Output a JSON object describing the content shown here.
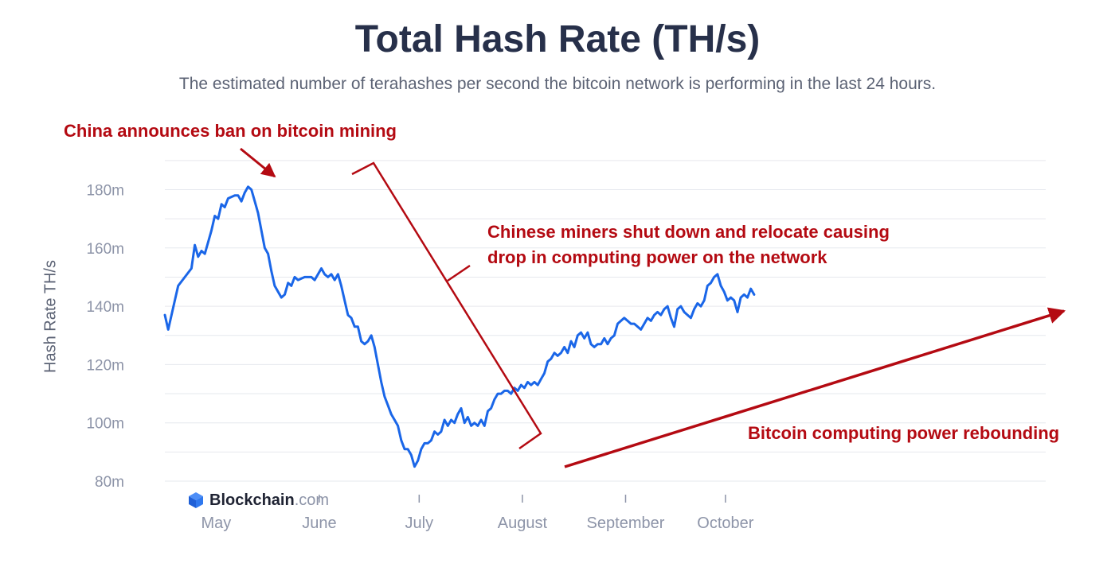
{
  "header": {
    "title": "Total Hash Rate (TH/s)",
    "subtitle": "The estimated number of terahashes per second the bitcoin network is performing in the last 24 hours."
  },
  "brand": {
    "name": "Blockchain",
    "tld": ".com",
    "icon": "blockchain-cube-icon"
  },
  "colors": {
    "line": "#1a66e8",
    "annotation": "#b40a12",
    "grid": "#e6e8ee",
    "text": "#27304a",
    "muted": "#8d94a8"
  },
  "annotations": {
    "ban": "China announces ban on bitcoin mining",
    "miners_line1": "Chinese miners shut down and relocate causing",
    "miners_line2": "drop in computing power on the network",
    "rebound": "Bitcoin computing power rebounding"
  },
  "chart_data": {
    "type": "line",
    "title": "Total Hash Rate (TH/s)",
    "ylabel": "Hash Rate TH/s",
    "xlabel": "",
    "ylim": [
      80,
      190
    ],
    "y_ticks": [
      80,
      100,
      120,
      140,
      160,
      180
    ],
    "y_tick_labels": [
      "80m",
      "100m",
      "120m",
      "140m",
      "160m",
      "180m"
    ],
    "x_ticks": [
      "May",
      "June",
      "July",
      "August",
      "September",
      "October"
    ],
    "grid": true,
    "series": [
      {
        "values": [
          [
            "2021-04-18",
            137
          ],
          [
            "2021-04-19",
            132
          ],
          [
            "2021-04-21",
            142
          ],
          [
            "2021-04-22",
            147
          ],
          [
            "2021-04-24",
            150
          ],
          [
            "2021-04-26",
            153
          ],
          [
            "2021-04-27",
            161
          ],
          [
            "2021-04-28",
            157
          ],
          [
            "2021-04-29",
            159
          ],
          [
            "2021-04-30",
            158
          ],
          [
            "2021-05-02",
            166
          ],
          [
            "2021-05-03",
            171
          ],
          [
            "2021-05-04",
            170
          ],
          [
            "2021-05-05",
            175
          ],
          [
            "2021-05-06",
            174
          ],
          [
            "2021-05-07",
            177
          ],
          [
            "2021-05-09",
            178
          ],
          [
            "2021-05-10",
            178
          ],
          [
            "2021-05-11",
            176
          ],
          [
            "2021-05-12",
            179
          ],
          [
            "2021-05-13",
            181
          ],
          [
            "2021-05-14",
            180
          ],
          [
            "2021-05-15",
            176
          ],
          [
            "2021-05-16",
            172
          ],
          [
            "2021-05-17",
            166
          ],
          [
            "2021-05-18",
            160
          ],
          [
            "2021-05-19",
            158
          ],
          [
            "2021-05-20",
            152
          ],
          [
            "2021-05-21",
            147
          ],
          [
            "2021-05-22",
            145
          ],
          [
            "2021-05-23",
            143
          ],
          [
            "2021-05-24",
            144
          ],
          [
            "2021-05-25",
            148
          ],
          [
            "2021-05-26",
            147
          ],
          [
            "2021-05-27",
            150
          ],
          [
            "2021-05-28",
            149
          ],
          [
            "2021-05-30",
            150
          ],
          [
            "2021-06-01",
            150
          ],
          [
            "2021-06-02",
            149
          ],
          [
            "2021-06-04",
            153
          ],
          [
            "2021-06-05",
            151
          ],
          [
            "2021-06-06",
            150
          ],
          [
            "2021-06-07",
            151
          ],
          [
            "2021-06-08",
            149
          ],
          [
            "2021-06-09",
            151
          ],
          [
            "2021-06-10",
            147
          ],
          [
            "2021-06-11",
            142
          ],
          [
            "2021-06-12",
            137
          ],
          [
            "2021-06-13",
            136
          ],
          [
            "2021-06-14",
            133
          ],
          [
            "2021-06-15",
            133
          ],
          [
            "2021-06-16",
            128
          ],
          [
            "2021-06-17",
            127
          ],
          [
            "2021-06-18",
            128
          ],
          [
            "2021-06-19",
            130
          ],
          [
            "2021-06-20",
            126
          ],
          [
            "2021-06-21",
            120
          ],
          [
            "2021-06-22",
            114
          ],
          [
            "2021-06-23",
            109
          ],
          [
            "2021-06-24",
            106
          ],
          [
            "2021-06-25",
            103
          ],
          [
            "2021-06-26",
            101
          ],
          [
            "2021-06-27",
            99
          ],
          [
            "2021-06-28",
            94
          ],
          [
            "2021-06-29",
            91
          ],
          [
            "2021-06-30",
            91
          ],
          [
            "2021-07-01",
            89
          ],
          [
            "2021-07-02",
            85
          ],
          [
            "2021-07-03",
            87
          ],
          [
            "2021-07-04",
            91
          ],
          [
            "2021-07-05",
            93
          ],
          [
            "2021-07-06",
            93
          ],
          [
            "2021-07-07",
            94
          ],
          [
            "2021-07-08",
            97
          ],
          [
            "2021-07-09",
            96
          ],
          [
            "2021-07-10",
            97
          ],
          [
            "2021-07-11",
            101
          ],
          [
            "2021-07-12",
            99
          ],
          [
            "2021-07-13",
            101
          ],
          [
            "2021-07-14",
            100
          ],
          [
            "2021-07-15",
            103
          ],
          [
            "2021-07-16",
            105
          ],
          [
            "2021-07-17",
            100
          ],
          [
            "2021-07-18",
            102
          ],
          [
            "2021-07-19",
            99
          ],
          [
            "2021-07-20",
            100
          ],
          [
            "2021-07-21",
            99
          ],
          [
            "2021-07-22",
            101
          ],
          [
            "2021-07-23",
            99
          ],
          [
            "2021-07-24",
            104
          ],
          [
            "2021-07-25",
            105
          ],
          [
            "2021-07-26",
            108
          ],
          [
            "2021-07-27",
            110
          ],
          [
            "2021-07-28",
            110
          ],
          [
            "2021-07-29",
            111
          ],
          [
            "2021-07-30",
            111
          ],
          [
            "2021-07-31",
            110
          ],
          [
            "2021-08-01",
            112
          ],
          [
            "2021-08-02",
            111
          ],
          [
            "2021-08-03",
            113
          ],
          [
            "2021-08-04",
            112
          ],
          [
            "2021-08-05",
            114
          ],
          [
            "2021-08-06",
            113
          ],
          [
            "2021-08-07",
            114
          ],
          [
            "2021-08-08",
            113
          ],
          [
            "2021-08-09",
            115
          ],
          [
            "2021-08-10",
            117
          ],
          [
            "2021-08-11",
            121
          ],
          [
            "2021-08-12",
            122
          ],
          [
            "2021-08-13",
            124
          ],
          [
            "2021-08-14",
            123
          ],
          [
            "2021-08-15",
            124
          ],
          [
            "2021-08-16",
            126
          ],
          [
            "2021-08-17",
            124
          ],
          [
            "2021-08-18",
            128
          ],
          [
            "2021-08-19",
            126
          ],
          [
            "2021-08-20",
            130
          ],
          [
            "2021-08-21",
            131
          ],
          [
            "2021-08-22",
            129
          ],
          [
            "2021-08-23",
            131
          ],
          [
            "2021-08-24",
            127
          ],
          [
            "2021-08-25",
            126
          ],
          [
            "2021-08-26",
            127
          ],
          [
            "2021-08-27",
            127
          ],
          [
            "2021-08-28",
            129
          ],
          [
            "2021-08-29",
            127
          ],
          [
            "2021-08-30",
            129
          ],
          [
            "2021-08-31",
            130
          ],
          [
            "2021-09-01",
            134
          ],
          [
            "2021-09-02",
            135
          ],
          [
            "2021-09-03",
            136
          ],
          [
            "2021-09-04",
            135
          ],
          [
            "2021-09-05",
            134
          ],
          [
            "2021-09-06",
            134
          ],
          [
            "2021-09-07",
            133
          ],
          [
            "2021-09-08",
            132
          ],
          [
            "2021-09-09",
            134
          ],
          [
            "2021-09-10",
            136
          ],
          [
            "2021-09-11",
            135
          ],
          [
            "2021-09-12",
            137
          ],
          [
            "2021-09-13",
            138
          ],
          [
            "2021-09-14",
            137
          ],
          [
            "2021-09-15",
            139
          ],
          [
            "2021-09-16",
            140
          ],
          [
            "2021-09-17",
            136
          ],
          [
            "2021-09-18",
            133
          ],
          [
            "2021-09-19",
            139
          ],
          [
            "2021-09-20",
            140
          ],
          [
            "2021-09-21",
            138
          ],
          [
            "2021-09-22",
            137
          ],
          [
            "2021-09-23",
            136
          ],
          [
            "2021-09-24",
            139
          ],
          [
            "2021-09-25",
            141
          ],
          [
            "2021-09-26",
            140
          ],
          [
            "2021-09-27",
            142
          ],
          [
            "2021-09-28",
            147
          ],
          [
            "2021-09-29",
            148
          ],
          [
            "2021-09-30",
            150
          ],
          [
            "2021-10-01",
            151
          ],
          [
            "2021-10-02",
            147
          ],
          [
            "2021-10-03",
            145
          ],
          [
            "2021-10-04",
            142
          ],
          [
            "2021-10-05",
            143
          ],
          [
            "2021-10-06",
            142
          ],
          [
            "2021-10-07",
            138
          ],
          [
            "2021-10-08",
            143
          ],
          [
            "2021-10-09",
            144
          ],
          [
            "2021-10-10",
            143
          ],
          [
            "2021-10-11",
            146
          ],
          [
            "2021-10-12",
            144
          ]
        ]
      }
    ]
  }
}
